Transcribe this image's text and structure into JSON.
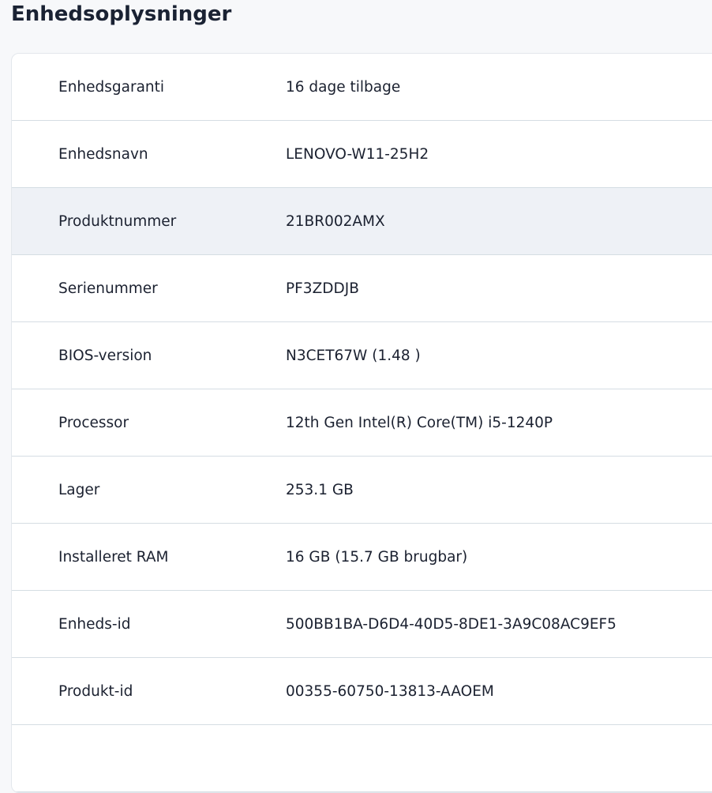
{
  "title": "Enhedsoplysninger",
  "rows": [
    {
      "label": "Enhedsgaranti",
      "value": "16 dage tilbage"
    },
    {
      "label": "Enhedsnavn",
      "value": "LENOVO-W11-25H2"
    },
    {
      "label": "Produktnummer",
      "value": "21BR002AMX",
      "highlighted": true
    },
    {
      "label": "Serienummer",
      "value": "PF3ZDDJB"
    },
    {
      "label": "BIOS-version",
      "value": "N3CET67W (1.48 )"
    },
    {
      "label": "Processor",
      "value": "12th Gen Intel(R) Core(TM) i5-1240P"
    },
    {
      "label": "Lager",
      "value": "253.1 GB"
    },
    {
      "label": "Installeret RAM",
      "value": "16 GB (15.7 GB brugbar)"
    },
    {
      "label": "Enheds-id",
      "value": "500BB1BA-D6D4-40D5-8DE1-3A9C08AC9EF5"
    },
    {
      "label": "Produkt-id",
      "value": "00355-60750-13813-AAOEM"
    }
  ]
}
